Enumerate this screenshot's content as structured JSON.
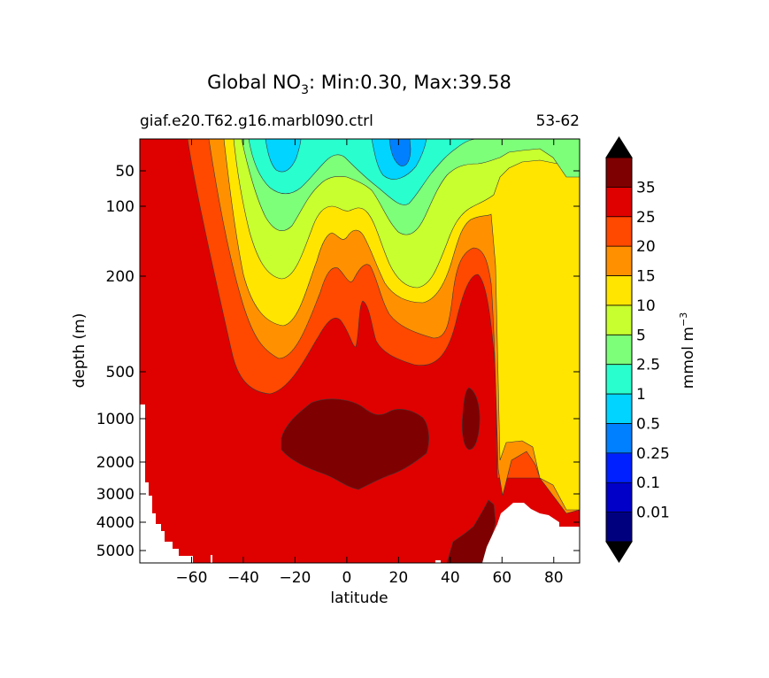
{
  "figure": {
    "title_prefix": "Global NO",
    "title_subscript": "3",
    "title_suffix": ": Min:0.30, Max:39.58",
    "subtitle_left": "giaf.e20.T62.g16.marbl090.ctrl",
    "subtitle_right": "53-62"
  },
  "chart_data": {
    "type": "contour",
    "title": "Global NO3: Min:0.30, Max:39.58",
    "variable": "NO3",
    "min": 0.3,
    "max": 39.58,
    "xlabel": "latitude",
    "ylabel": "depth (m)",
    "xlim": [
      -80,
      90
    ],
    "x_ticks": [
      -60,
      -40,
      -20,
      0,
      20,
      40,
      60,
      80
    ],
    "x_tick_labels": [
      "−60",
      "−40",
      "−20",
      "0",
      "20",
      "40",
      "60",
      "80"
    ],
    "y_ticks": [
      50,
      100,
      200,
      500,
      1000,
      2000,
      3000,
      4000,
      5000
    ],
    "y_tick_labels": [
      "50",
      "100",
      "200",
      "500",
      "1000",
      "2000",
      "3000",
      "4000",
      "5000"
    ],
    "y_inverted": true,
    "colorbar": {
      "label": "mmol m",
      "label_exponent": "−3",
      "levels": [
        0.01,
        0.1,
        0.25,
        0.5,
        1,
        2.5,
        5,
        10,
        15,
        20,
        25,
        35
      ],
      "level_labels": [
        "0.01",
        "0.1",
        "0.25",
        "0.5",
        "1",
        "2.5",
        "5",
        "10",
        "15",
        "20",
        "25",
        "35"
      ],
      "colors": [
        "#00007f",
        "#0000c8",
        "#0020ff",
        "#0080ff",
        "#00d4ff",
        "#29ffce",
        "#7dff7a",
        "#c8ff2e",
        "#ffe500",
        "#ff9100",
        "#ff4800",
        "#df0000",
        "#7f0000"
      ],
      "extend": "both"
    },
    "features": [
      {
        "name": "low-NO3 minimum near 25S",
        "value_range": "0.5-1",
        "depth": "surface"
      },
      {
        "name": "low-NO3 minimum near 20N",
        "value_range": "0.25-0.5",
        "depth": "surface"
      },
      {
        "name": "deep maximum",
        "value_range": ">35",
        "lat_range": [
          -25,
          32
        ],
        "depth_range": [
          1000,
          3000
        ]
      },
      {
        "name": "North Pacific maximum",
        "value_range": ">35",
        "lat_range": [
          45,
          52
        ],
        "depth_range": [
          800,
          2000
        ]
      }
    ]
  }
}
